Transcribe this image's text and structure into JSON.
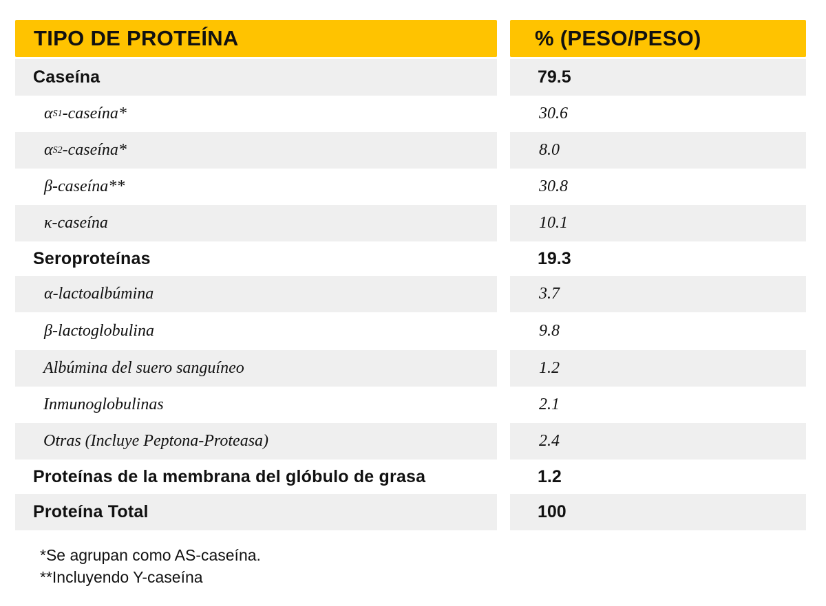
{
  "table": {
    "header": {
      "left": "TIPO DE PROTEÍNA",
      "right": "% (PESO/PESO)"
    },
    "rows": [
      {
        "kind": "group",
        "label": "Caseína",
        "value": "79.5"
      },
      {
        "kind": "sub",
        "greek": "α",
        "subscript": "S1",
        "label": "-caseína*",
        "value": "30.6"
      },
      {
        "kind": "sub",
        "greek": "α",
        "subscript": "S2",
        "label": "-caseína*",
        "value": "8.0"
      },
      {
        "kind": "sub",
        "greek": "β",
        "subscript": "",
        "label": "-caseína**",
        "value": "30.8"
      },
      {
        "kind": "sub",
        "greek": "κ",
        "subscript": "",
        "label": "-caseína",
        "value": "10.1"
      },
      {
        "kind": "group",
        "label": "Seroproteínas",
        "value": "19.3"
      },
      {
        "kind": "sub",
        "greek": "α",
        "subscript": "",
        "label": "-lactoalbúmina",
        "value": "3.7"
      },
      {
        "kind": "sub",
        "greek": "β",
        "subscript": "",
        "label": "-lactoglobulina",
        "value": "9.8"
      },
      {
        "kind": "sub",
        "greek": "",
        "subscript": "",
        "label": "Albúmina del suero sanguíneo",
        "value": "1.2"
      },
      {
        "kind": "sub",
        "greek": "",
        "subscript": "",
        "label": "Inmunoglobulinas",
        "value": "2.1"
      },
      {
        "kind": "sub",
        "greek": "",
        "subscript": "",
        "label": "Otras (Incluye Peptona-Proteasa)",
        "value": "2.4"
      },
      {
        "kind": "group",
        "label": "Proteínas de la membrana del glóbulo de grasa",
        "value": "1.2"
      },
      {
        "kind": "group",
        "label": "Proteína Total",
        "value": "100"
      }
    ]
  },
  "notes": {
    "line1": "*Se agrupan como AS-caseína.",
    "line2": "**Incluyendo Y-caseína"
  },
  "colors": {
    "header_bg": "#ffc300",
    "shade_bg": "#efefef",
    "text": "#111111"
  }
}
